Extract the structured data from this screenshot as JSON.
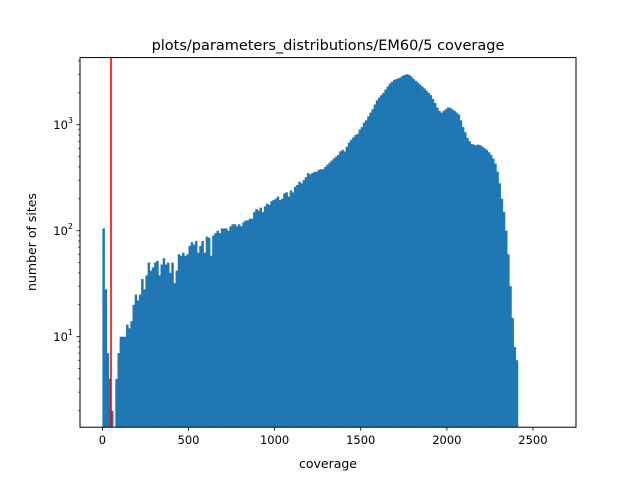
{
  "chart_data": {
    "type": "bar",
    "subtype": "histogram",
    "title": "plots/parameters_distributions/EM60/5 coverage",
    "xlabel": "coverage",
    "ylabel": "number of sites",
    "xlim": [
      -130,
      2750
    ],
    "ylim": [
      1.4,
      4300
    ],
    "yscale": "log",
    "grid": false,
    "bar_color": "#1f77b4",
    "threshold_line": {
      "x": 50,
      "color": "#ff0000"
    },
    "x_ticks": [
      {
        "value": 0,
        "label": "0"
      },
      {
        "value": 500,
        "label": "500"
      },
      {
        "value": 1000,
        "label": "1000"
      },
      {
        "value": 1500,
        "label": "1500"
      },
      {
        "value": 2000,
        "label": "2000"
      },
      {
        "value": 2500,
        "label": "2500"
      }
    ],
    "y_ticks": [
      {
        "value": 10,
        "label_base": "10",
        "label_exp": "1"
      },
      {
        "value": 100,
        "label_base": "10",
        "label_exp": "2"
      },
      {
        "value": 1000,
        "label_base": "10",
        "label_exp": "3"
      }
    ],
    "bin_start": 0,
    "bin_width": 12.5,
    "values": [
      105,
      28,
      7,
      4,
      2,
      0,
      4,
      7,
      10,
      10,
      10,
      13,
      12,
      14,
      20,
      25,
      22,
      25,
      35,
      28,
      38,
      50,
      42,
      45,
      50,
      52,
      38,
      48,
      55,
      48,
      50,
      40,
      50,
      32,
      42,
      60,
      58,
      62,
      58,
      60,
      72,
      78,
      74,
      80,
      62,
      72,
      80,
      62,
      88,
      86,
      58,
      90,
      95,
      100,
      95,
      105,
      105,
      105,
      100,
      110,
      115,
      115,
      110,
      115,
      110,
      120,
      125,
      125,
      130,
      130,
      150,
      160,
      155,
      165,
      150,
      170,
      180,
      175,
      190,
      195,
      200,
      210,
      195,
      200,
      225,
      230,
      210,
      240,
      230,
      260,
      270,
      290,
      280,
      300,
      320,
      350,
      340,
      350,
      360,
      360,
      375,
      380,
      380,
      400,
      420,
      440,
      460,
      480,
      500,
      520,
      560,
      580,
      560,
      620,
      680,
      720,
      760,
      800,
      820,
      900,
      950,
      1050,
      1100,
      1200,
      1300,
      1400,
      1550,
      1700,
      1800,
      1900,
      2000,
      2150,
      2300,
      2450,
      2550,
      2650,
      2700,
      2750,
      2800,
      2900,
      2950,
      3000,
      2950,
      2850,
      2700,
      2600,
      2500,
      2400,
      2300,
      2200,
      2100,
      2000,
      1900,
      1750,
      1600,
      1450,
      1350,
      1300,
      1350,
      1400,
      1450,
      1450,
      1400,
      1350,
      1300,
      1250,
      1100,
      950,
      850,
      750,
      700,
      660,
      650,
      640,
      650,
      640,
      620,
      600,
      580,
      550,
      520,
      480,
      430,
      360,
      280,
      200,
      150,
      100,
      60,
      30,
      15,
      8,
      6
    ]
  }
}
